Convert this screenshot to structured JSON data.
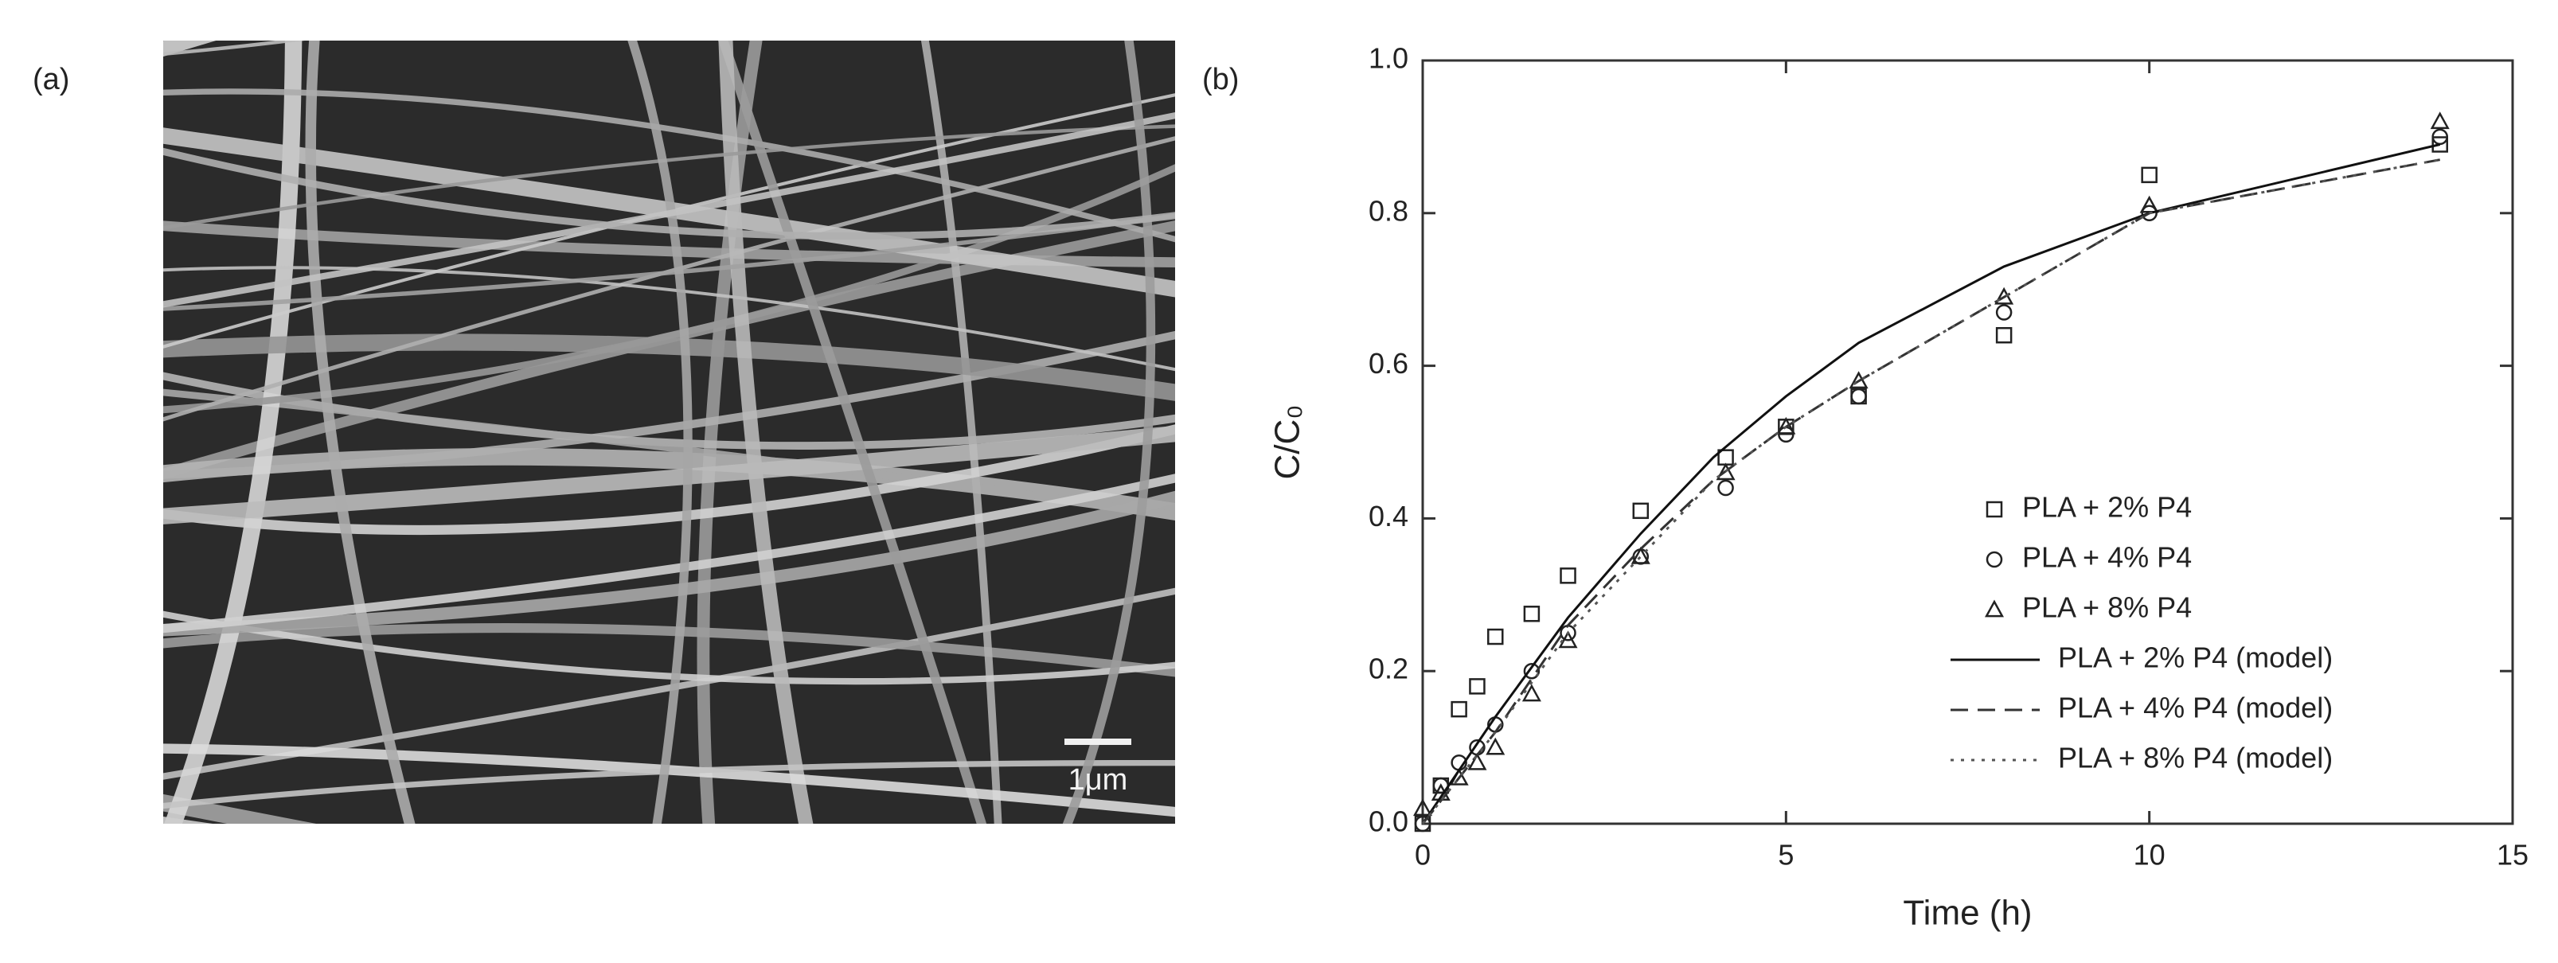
{
  "panel_labels": [
    "(a)",
    "(b)"
  ],
  "image": {
    "scale_bar_label": "1μm"
  },
  "chart_data": {
    "type": "scatter",
    "x_label": "Time (h)",
    "y_label": "C/C₀",
    "xlim": [
      0,
      15
    ],
    "xticks": [
      0,
      5,
      10,
      15
    ],
    "ylim": [
      0,
      1
    ],
    "yticks": [
      {
        "value": 0,
        "label": "0.0"
      },
      0.2,
      0.4,
      0.6,
      0.8,
      {
        "value": 1,
        "label": "1.0"
      }
    ],
    "legend": "lower right",
    "series": [
      {
        "name": "PLA + 2% P4",
        "marker": "square",
        "color": "#222222",
        "x": [
          0,
          0.25,
          0.5,
          0.75,
          1,
          1.5,
          2,
          3,
          4.17,
          5,
          6,
          8,
          10,
          14
        ],
        "values": [
          0.0,
          0.05,
          0.15,
          0.18,
          0.245,
          0.275,
          0.325,
          0.41,
          0.48,
          0.52,
          0.56,
          0.64,
          0.85,
          0.89
        ]
      },
      {
        "name": "PLA + 4% P4",
        "marker": "circle",
        "color": "#222222",
        "x": [
          0,
          0.25,
          0.5,
          0.75,
          1,
          1.5,
          2,
          3,
          4.17,
          5,
          6,
          8,
          10,
          14
        ],
        "values": [
          0.0,
          0.05,
          0.08,
          0.1,
          0.13,
          0.2,
          0.25,
          0.35,
          0.44,
          0.51,
          0.56,
          0.67,
          0.8,
          0.9
        ]
      },
      {
        "name": "PLA + 8% P4",
        "marker": "triangle",
        "color": "#222222",
        "x": [
          0,
          0.25,
          0.5,
          0.75,
          1,
          1.5,
          2,
          3,
          4.17,
          5,
          6,
          8,
          10,
          14
        ],
        "values": [
          0.02,
          0.04,
          0.06,
          0.08,
          0.1,
          0.17,
          0.24,
          0.35,
          0.46,
          0.52,
          0.58,
          0.69,
          0.81,
          0.92
        ]
      },
      {
        "name": "PLA + 2% P4 (model)",
        "line_style": "solid",
        "color": "#111111",
        "x": [
          0,
          1,
          2,
          3,
          4,
          5,
          6,
          8,
          10,
          14
        ],
        "values": [
          0,
          0.14,
          0.27,
          0.38,
          0.48,
          0.56,
          0.63,
          0.73,
          0.8,
          0.89
        ]
      },
      {
        "name": "PLA + 4% P4 (model)",
        "line_style": "dashed",
        "color": "#333333",
        "x": [
          0,
          1,
          2,
          3,
          4,
          5,
          6,
          8,
          10,
          14
        ],
        "values": [
          0,
          0.12,
          0.26,
          0.36,
          0.45,
          0.52,
          0.58,
          0.69,
          0.8,
          0.87
        ]
      },
      {
        "name": "PLA + 8% P4 (model)",
        "line_style": "dotted",
        "color": "#555555",
        "x": [
          0,
          1,
          2,
          3,
          4,
          5,
          6,
          8,
          10,
          14
        ],
        "values": [
          0,
          0.12,
          0.25,
          0.35,
          0.45,
          0.52,
          0.58,
          0.69,
          0.8,
          0.87
        ]
      }
    ]
  }
}
